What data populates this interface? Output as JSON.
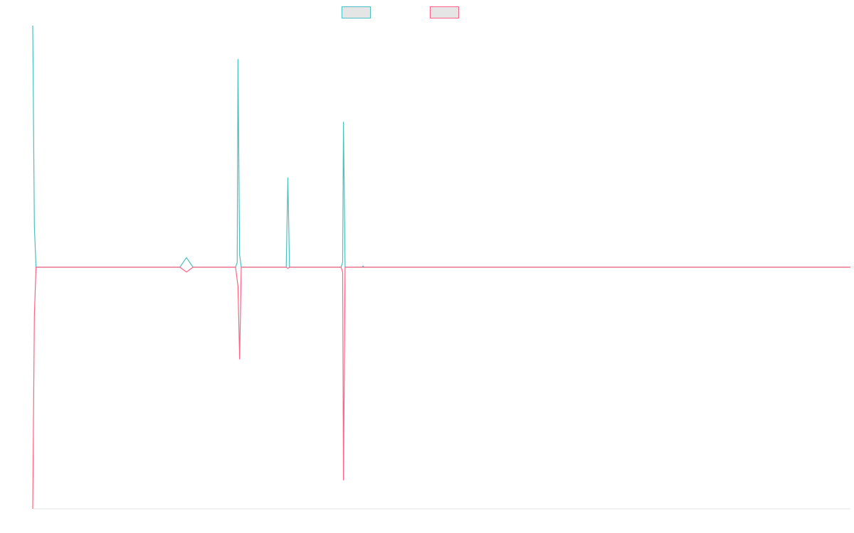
{
  "chart_data": {
    "type": "line",
    "title": "",
    "xlabel": "",
    "ylabel": "",
    "grid": false,
    "legend_position": "top-center",
    "x_range": [
      0,
      1000
    ],
    "ylim": [
      -100,
      100
    ],
    "baseline": 0,
    "series": [
      {
        "color": "#4bc0c0",
        "points": [
          [
            0,
            100
          ],
          [
            2,
            17
          ],
          [
            4,
            0
          ],
          [
            180,
            0
          ],
          [
            188,
            4
          ],
          [
            196,
            0
          ],
          [
            248,
            0
          ],
          [
            250,
            2
          ],
          [
            251,
            86
          ],
          [
            253,
            5
          ],
          [
            255,
            0
          ],
          [
            310,
            0
          ],
          [
            312,
            37
          ],
          [
            314,
            0
          ],
          [
            377,
            0
          ],
          [
            379,
            2
          ],
          [
            380,
            60
          ],
          [
            382,
            0
          ],
          [
            403,
            0
          ],
          [
            404,
            0.5
          ],
          [
            405,
            0
          ],
          [
            1000,
            0
          ]
        ]
      },
      {
        "color": "#ff6384",
        "points": [
          [
            0,
            -100
          ],
          [
            2,
            -20
          ],
          [
            4,
            0
          ],
          [
            180,
            0
          ],
          [
            188,
            -2
          ],
          [
            196,
            0
          ],
          [
            248,
            0
          ],
          [
            251,
            -8
          ],
          [
            253,
            -38
          ],
          [
            255,
            0
          ],
          [
            310,
            0
          ],
          [
            312,
            -0.5
          ],
          [
            314,
            0
          ],
          [
            377,
            0
          ],
          [
            379,
            -2
          ],
          [
            380,
            -88
          ],
          [
            382,
            0
          ],
          [
            1000,
            0
          ]
        ]
      }
    ]
  }
}
